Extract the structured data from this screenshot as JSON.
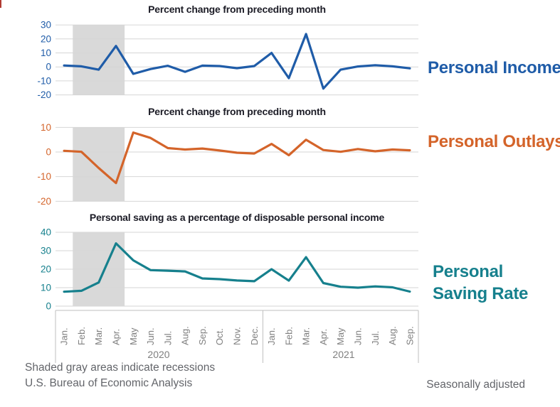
{
  "page": {
    "corner_mark_color": "#b03b33",
    "background": "#ffffff",
    "gridline_color": "#d6d6d6",
    "axis_line_color": "#bfbfbf"
  },
  "recession": {
    "band_color": "#d9d9d9",
    "start_month_index": 1,
    "end_month_index": 3,
    "meaning": "Shaded gray areas indicate recessions"
  },
  "axis": {
    "label_color": "#7f7f7f",
    "months": [
      "Jan.",
      "Feb.",
      "Mar.",
      "Apr.",
      "May",
      "Jun.",
      "Jul.",
      "Aug.",
      "Sep.",
      "Oct.",
      "Nov.",
      "Dec.",
      "Jan.",
      "Feb.",
      "Mar.",
      "Apr.",
      "May",
      "Jun.",
      "Jul.",
      "Aug.",
      "Sep."
    ],
    "years": [
      "2020",
      "2021"
    ]
  },
  "chart_data": [
    {
      "type": "line",
      "id": "personal-income",
      "title": "Percent change from preceding month",
      "label": "Personal Income",
      "color": "#1f5ca8",
      "ylim": [
        -20,
        30
      ],
      "yticks": [
        30,
        20,
        10,
        0,
        -10,
        -20
      ],
      "x_categories": [
        "Jan. 2020",
        "Feb. 2020",
        "Mar. 2020",
        "Apr. 2020",
        "May 2020",
        "Jun. 2020",
        "Jul. 2020",
        "Aug. 2020",
        "Sep. 2020",
        "Oct. 2020",
        "Nov. 2020",
        "Dec. 2020",
        "Jan. 2021",
        "Feb. 2021",
        "Mar. 2021",
        "Apr. 2021",
        "May 2021",
        "Jun. 2021",
        "Jul. 2021",
        "Aug. 2021",
        "Sep. 2021"
      ],
      "values": [
        1.0,
        0.4,
        -2.0,
        15.0,
        -5.0,
        -1.5,
        0.8,
        -3.5,
        0.9,
        0.6,
        -0.9,
        0.6,
        10.0,
        -8.0,
        23.5,
        -15.5,
        -2.0,
        0.3,
        1.2,
        0.4,
        -1.0
      ]
    },
    {
      "type": "line",
      "id": "personal-outlays",
      "title": "Percent change from preceding month",
      "label": "Personal Outlays",
      "color": "#d4642a",
      "ylim": [
        -20,
        10
      ],
      "yticks": [
        10,
        0,
        -10,
        -20
      ],
      "x_categories": [
        "Jan. 2020",
        "Feb. 2020",
        "Mar. 2020",
        "Apr. 2020",
        "May 2020",
        "Jun. 2020",
        "Jul. 2020",
        "Aug. 2020",
        "Sep. 2020",
        "Oct. 2020",
        "Nov. 2020",
        "Dec. 2020",
        "Jan. 2021",
        "Feb. 2021",
        "Mar. 2021",
        "Apr. 2021",
        "May 2021",
        "Jun. 2021",
        "Jul. 2021",
        "Aug. 2021",
        "Sep. 2021"
      ],
      "values": [
        0.5,
        0.1,
        -6.5,
        -12.6,
        7.9,
        5.7,
        1.6,
        1.0,
        1.4,
        0.6,
        -0.3,
        -0.6,
        3.3,
        -1.3,
        5.0,
        0.8,
        0.1,
        1.2,
        0.3,
        1.0,
        0.7
      ]
    },
    {
      "type": "line",
      "id": "personal-saving-rate",
      "title": "Personal saving as a percentage of disposable personal income",
      "label": "Personal",
      "label2": "Saving Rate",
      "color": "#16808d",
      "ylim": [
        0,
        40
      ],
      "yticks": [
        40,
        30,
        20,
        10,
        0
      ],
      "x_categories": [
        "Jan. 2020",
        "Feb. 2020",
        "Mar. 2020",
        "Apr. 2020",
        "May 2020",
        "Jun. 2020",
        "Jul. 2020",
        "Aug. 2020",
        "Sep. 2020",
        "Oct. 2020",
        "Nov. 2020",
        "Dec. 2020",
        "Jan. 2021",
        "Feb. 2021",
        "Mar. 2021",
        "Apr. 2021",
        "May 2021",
        "Jun. 2021",
        "Jul. 2021",
        "Aug. 2021",
        "Sep. 2021"
      ],
      "values": [
        7.8,
        8.3,
        12.8,
        34.0,
        24.8,
        19.5,
        19.2,
        18.8,
        15.0,
        14.6,
        13.9,
        13.5,
        20.0,
        13.8,
        26.5,
        12.5,
        10.5,
        10.0,
        10.7,
        10.2,
        7.9
      ]
    }
  ],
  "footer": {
    "note_recessions": "Shaded gray areas indicate recessions",
    "source": "U.S. Bureau of Economic Analysis",
    "adjustment": "Seasonally adjusted"
  }
}
